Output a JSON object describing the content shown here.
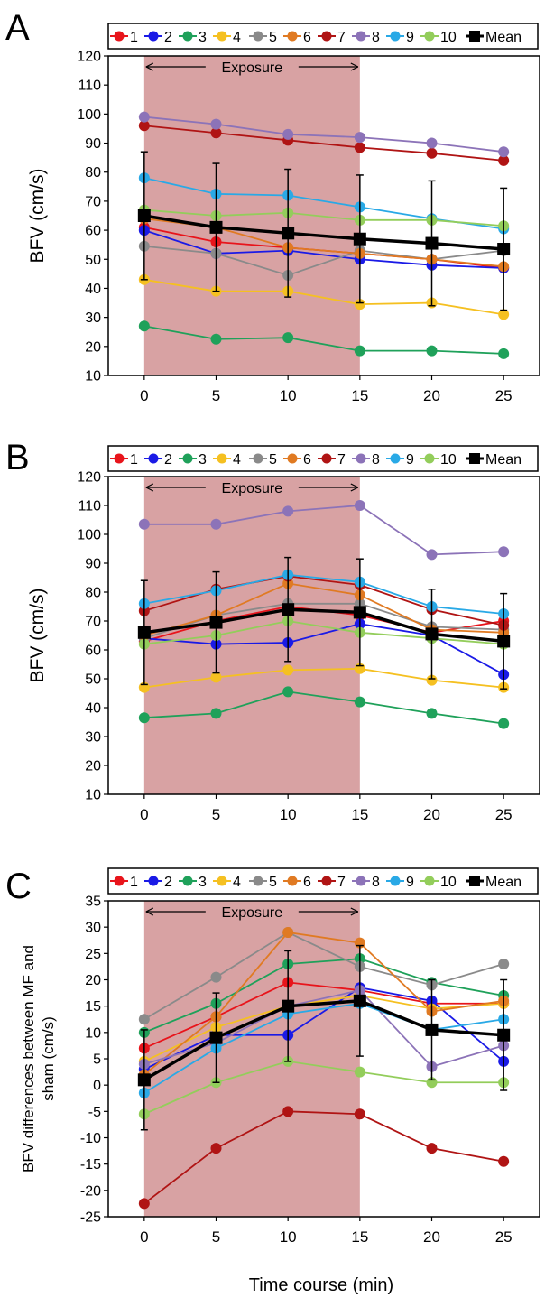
{
  "figure": {
    "xlabel": "Time course (min)",
    "exposure_label": "Exposure",
    "colors": {
      "exposure_fill": "#d8a2a3",
      "1": "#e8141b",
      "2": "#1a1ae6",
      "3": "#1fa15a",
      "4": "#f5c021",
      "5": "#8a8a8a",
      "6": "#e07a22",
      "7": "#b01414",
      "8": "#8c73b8",
      "9": "#29a9e6",
      "10": "#93cd5b",
      "Mean": "#000000"
    }
  },
  "chart_data": [
    {
      "panel": "A",
      "type": "line",
      "title": "",
      "xlabel": "",
      "ylabel": "BFV (cm/s)",
      "x": [
        0,
        5,
        10,
        15,
        20,
        25
      ],
      "xlim": [
        -2.5,
        27.5
      ],
      "ylim": [
        10,
        120
      ],
      "yticks": [
        10,
        20,
        30,
        40,
        50,
        60,
        70,
        80,
        90,
        100,
        110,
        120
      ],
      "exposure": [
        0,
        15
      ],
      "series": [
        {
          "name": "1",
          "values": [
            61,
            56,
            54,
            52,
            50,
            47
          ]
        },
        {
          "name": "2",
          "values": [
            60,
            52,
            53,
            50,
            48,
            47
          ]
        },
        {
          "name": "3",
          "values": [
            27,
            22.5,
            23,
            18.5,
            18.5,
            17.5
          ]
        },
        {
          "name": "4",
          "values": [
            43,
            39,
            39,
            34.5,
            35,
            31
          ]
        },
        {
          "name": "5",
          "values": [
            54.5,
            52,
            44.5,
            53,
            50,
            53
          ]
        },
        {
          "name": "6",
          "values": [
            64,
            61,
            54,
            52,
            50,
            47.5
          ]
        },
        {
          "name": "7",
          "values": [
            96,
            93.5,
            91,
            88.5,
            86.5,
            84
          ]
        },
        {
          "name": "8",
          "values": [
            99,
            96.5,
            93,
            92,
            90,
            87
          ]
        },
        {
          "name": "9",
          "values": [
            78,
            72.5,
            72,
            68,
            64,
            60.5
          ]
        },
        {
          "name": "10",
          "values": [
            67,
            65,
            66,
            63.5,
            63.5,
            61.5
          ]
        },
        {
          "name": "Mean",
          "values": [
            65,
            61,
            59,
            57,
            55.5,
            53.5
          ],
          "error": [
            22,
            22,
            22,
            22,
            21.5,
            21
          ]
        }
      ]
    },
    {
      "panel": "B",
      "type": "line",
      "title": "",
      "xlabel": "",
      "ylabel": "BFV (cm/s)",
      "x": [
        0,
        5,
        10,
        15,
        20,
        25
      ],
      "xlim": [
        -2.5,
        27.5
      ],
      "ylim": [
        10,
        120
      ],
      "yticks": [
        10,
        20,
        30,
        40,
        50,
        60,
        70,
        80,
        90,
        100,
        110,
        120
      ],
      "exposure": [
        0,
        15
      ],
      "series": [
        {
          "name": "1",
          "values": [
            63,
            70,
            75,
            72,
            66,
            70
          ]
        },
        {
          "name": "2",
          "values": [
            64,
            62,
            62.5,
            69,
            65,
            51.5
          ]
        },
        {
          "name": "3",
          "values": [
            36.5,
            38,
            45.5,
            42,
            38,
            34.5
          ]
        },
        {
          "name": "4",
          "values": [
            47,
            50.5,
            53,
            53.5,
            49.5,
            47
          ]
        },
        {
          "name": "5",
          "values": [
            64,
            72,
            76,
            76,
            68,
            67
          ]
        },
        {
          "name": "6",
          "values": [
            65,
            72,
            83,
            79,
            67,
            66
          ]
        },
        {
          "name": "7",
          "values": [
            73.5,
            81,
            85.5,
            82.5,
            74,
            68.5
          ]
        },
        {
          "name": "8",
          "values": [
            103.5,
            103.5,
            108,
            110,
            93,
            94
          ]
        },
        {
          "name": "9",
          "values": [
            76,
            80.5,
            86,
            83.5,
            75,
            72.5
          ]
        },
        {
          "name": "10",
          "values": [
            62,
            65,
            70,
            66,
            64,
            62
          ]
        },
        {
          "name": "Mean",
          "values": [
            66,
            69.5,
            74,
            73,
            65.5,
            63
          ],
          "error": [
            18,
            17.5,
            18,
            18.5,
            15.5,
            16.5
          ]
        }
      ]
    },
    {
      "panel": "C",
      "type": "line",
      "title": "",
      "xlabel": "Time course (min)",
      "ylabel": "BFV differences between MF and sham (cm/s)",
      "x": [
        0,
        5,
        10,
        15,
        20,
        25
      ],
      "xlim": [
        -2.5,
        27.5
      ],
      "ylim": [
        -25,
        35
      ],
      "yticks": [
        -25,
        -20,
        -15,
        -10,
        -5,
        0,
        5,
        10,
        15,
        20,
        25,
        30,
        35
      ],
      "exposure": [
        0,
        15
      ],
      "series": [
        {
          "name": "1",
          "values": [
            7,
            13,
            19.5,
            18,
            15.5,
            15.5
          ]
        },
        {
          "name": "2",
          "values": [
            3,
            9.5,
            9.5,
            18.5,
            16,
            4.5
          ]
        },
        {
          "name": "3",
          "values": [
            10,
            15.5,
            23,
            24,
            19.5,
            17
          ]
        },
        {
          "name": "4",
          "values": [
            4.5,
            11,
            15,
            17,
            14.5,
            15.5
          ]
        },
        {
          "name": "5",
          "values": [
            12.5,
            20.5,
            29,
            22.5,
            19,
            23
          ]
        },
        {
          "name": "6",
          "values": [
            2,
            13,
            29,
            27,
            14,
            16
          ]
        },
        {
          "name": "7",
          "values": [
            -22.5,
            -12,
            -5,
            -5.5,
            -12,
            -14.5
          ]
        },
        {
          "name": "8",
          "values": [
            4,
            8,
            15,
            18,
            3.5,
            7.5
          ]
        },
        {
          "name": "9",
          "values": [
            -1.5,
            7,
            13.5,
            15.5,
            10.5,
            12.5
          ]
        },
        {
          "name": "10",
          "values": [
            -5.5,
            0.5,
            4.5,
            2.5,
            0.5,
            0.5
          ]
        },
        {
          "name": "Mean",
          "values": [
            1,
            9,
            15,
            16,
            10.5,
            9.5
          ],
          "error": [
            9.5,
            8.5,
            10.5,
            10.5,
            9.5,
            10.5
          ]
        }
      ]
    }
  ]
}
